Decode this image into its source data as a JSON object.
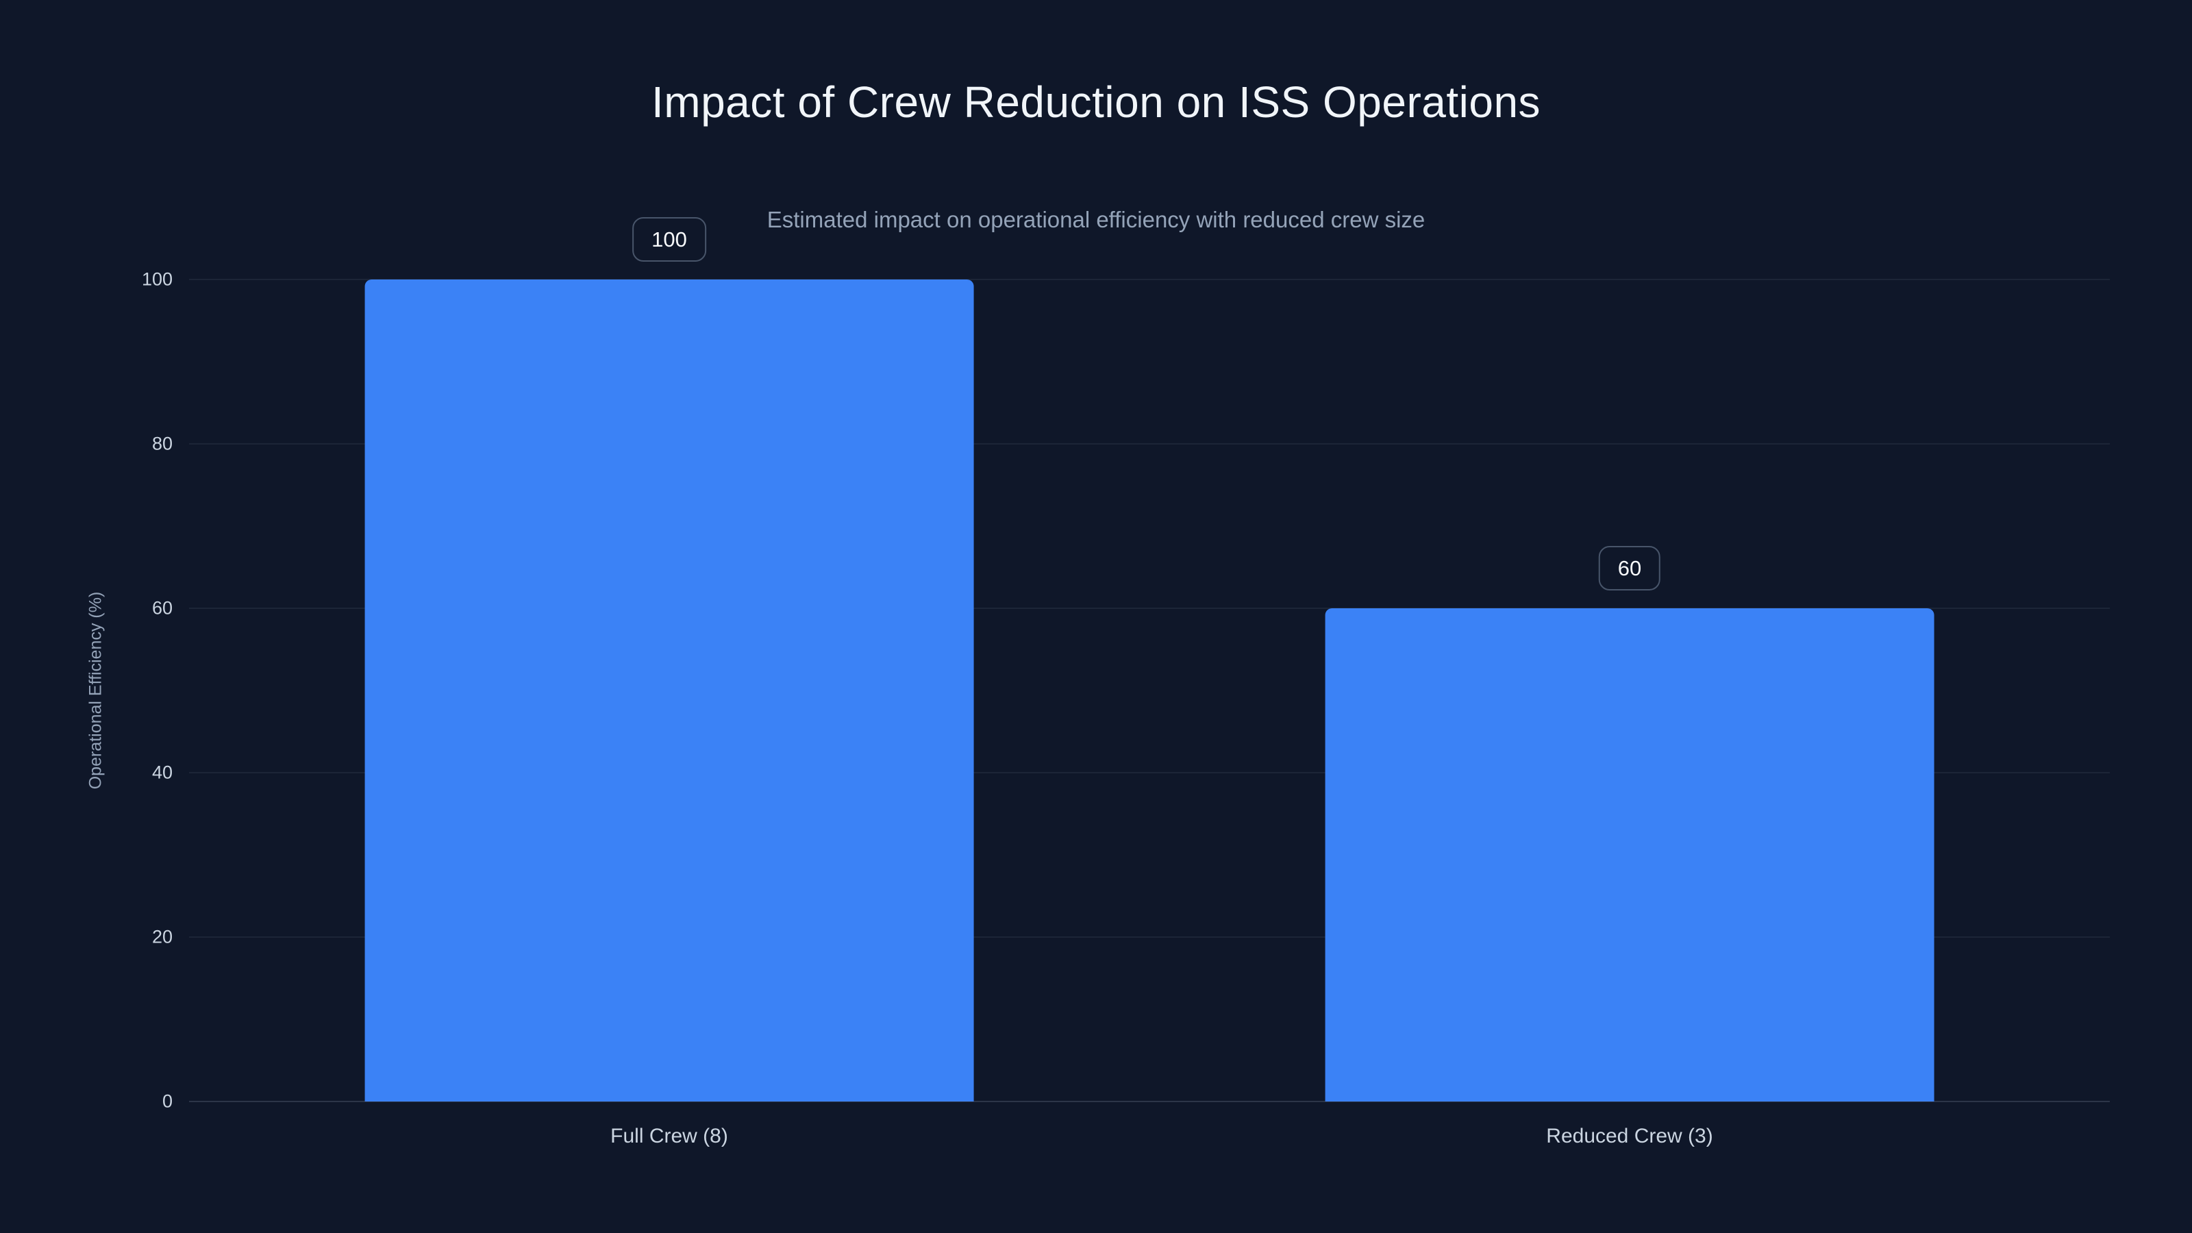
{
  "page": {
    "background": "#0f1729"
  },
  "header": {
    "title": "Impact of Crew Reduction on ISS Operations",
    "subtitle": "Estimated impact on operational efficiency with reduced crew size"
  },
  "chart_data": {
    "type": "bar",
    "title": "Impact of Crew Reduction on ISS Operations",
    "subtitle": "Estimated impact on operational efficiency with reduced crew size",
    "categories": [
      "Full Crew (8)",
      "Reduced Crew (3)"
    ],
    "values": [
      100,
      60
    ],
    "value_labels": [
      "100",
      "60"
    ],
    "xlabel": "",
    "ylabel": "Operational Efficiency (%)",
    "ylim": [
      0,
      100
    ],
    "yticks": [
      0,
      20,
      40,
      60,
      80,
      100
    ],
    "grid": true,
    "legend": false,
    "bar_color": "#3b82f6",
    "text_color": "#cbd5e1",
    "muted_text_color": "#94a3b8"
  }
}
